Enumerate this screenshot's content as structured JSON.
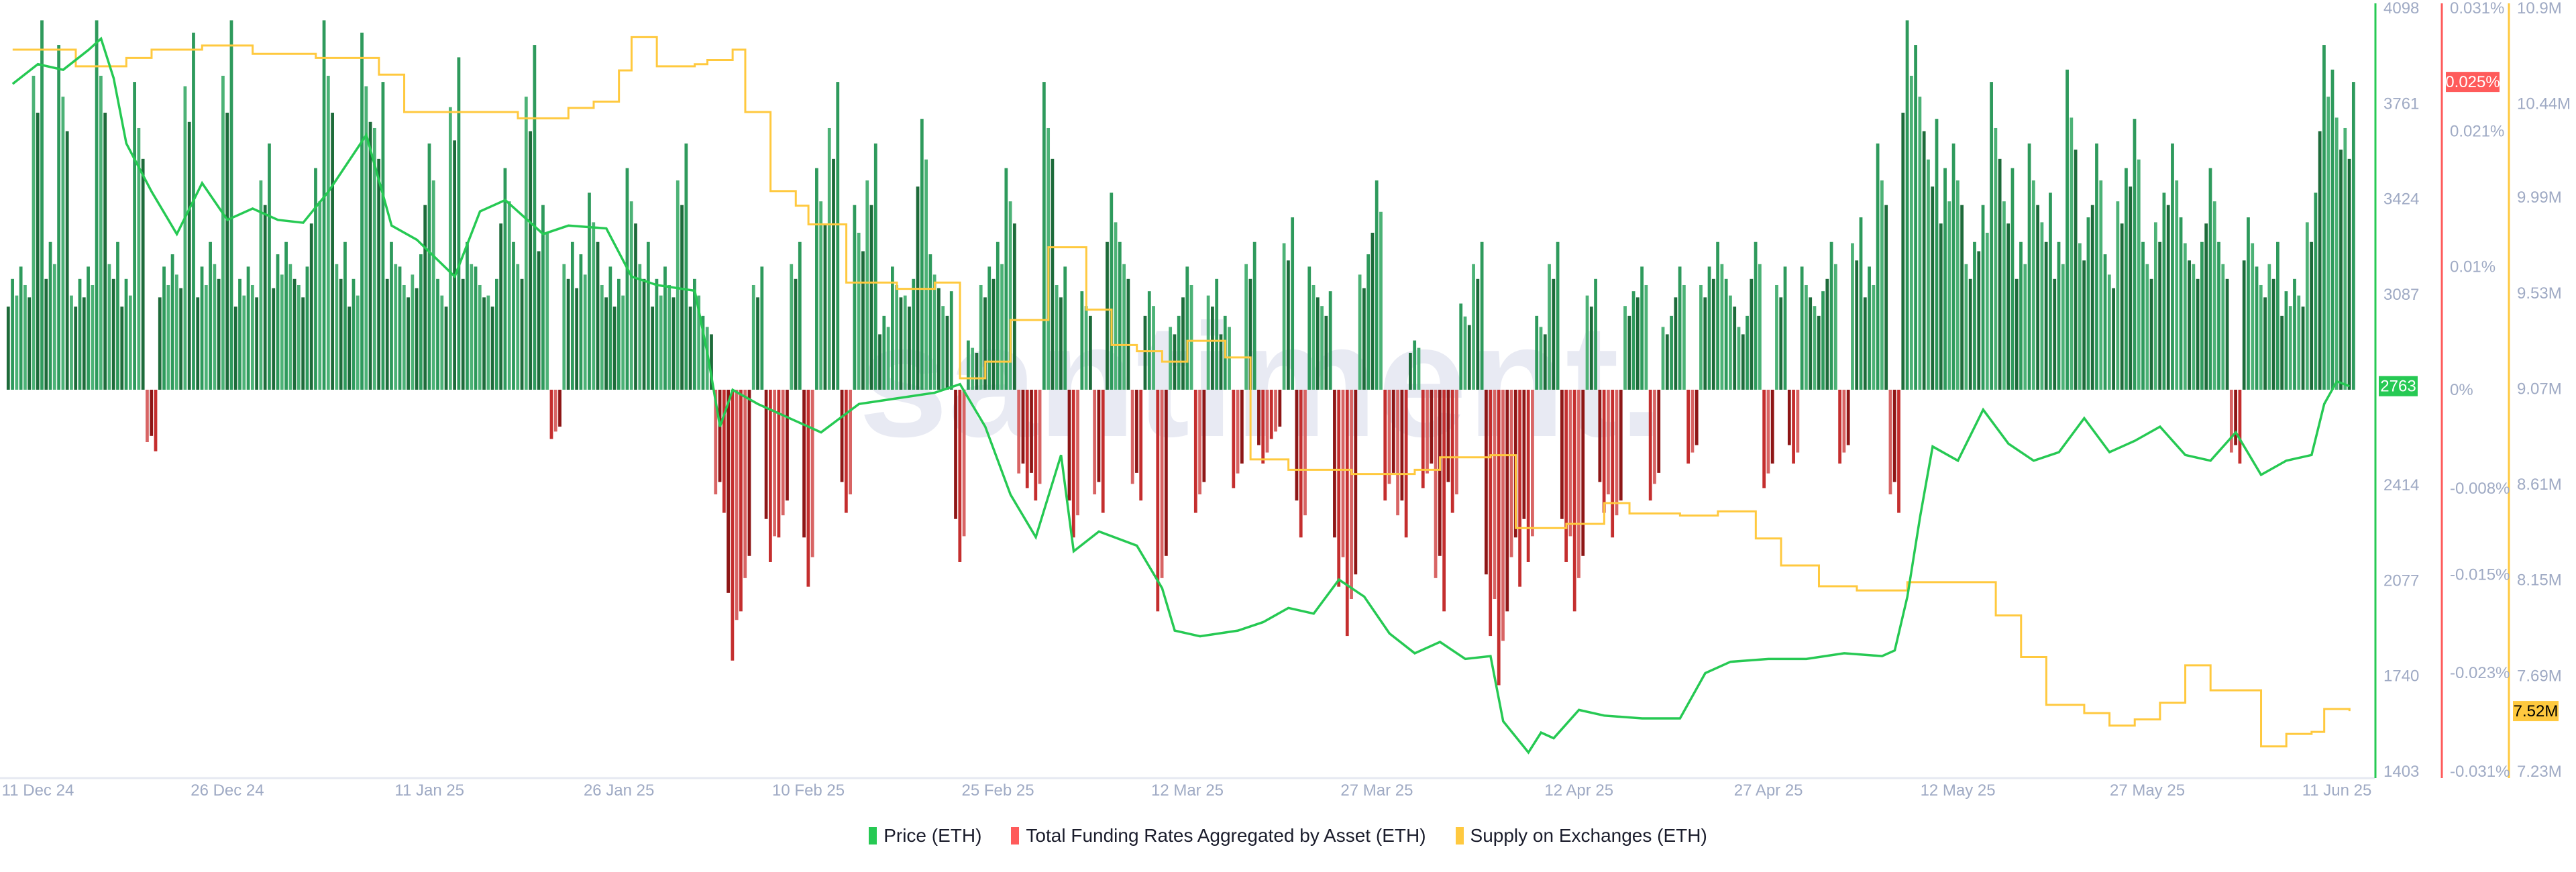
{
  "watermark": "santiment.",
  "colors": {
    "price": "#26c953",
    "funding": "#ff5b5b",
    "supply": "#ffc93f",
    "bar_pos": [
      "#1d6b3a",
      "#2e9a5c",
      "#4cb276"
    ],
    "bar_neg": [
      "#8e1616",
      "#c42e2e",
      "#d86464"
    ]
  },
  "chart_data": {
    "type": "bar+line",
    "x_tick_labels": [
      {
        "date": "2024-12-11",
        "label": "11 Dec 24"
      },
      {
        "date": "2024-12-26",
        "label": "26 Dec 24"
      },
      {
        "date": "2025-01-11",
        "label": "11 Jan 25"
      },
      {
        "date": "2025-01-26",
        "label": "26 Jan 25"
      },
      {
        "date": "2025-02-10",
        "label": "10 Feb 25"
      },
      {
        "date": "2025-02-25",
        "label": "25 Feb 25"
      },
      {
        "date": "2025-03-12",
        "label": "12 Mar 25"
      },
      {
        "date": "2025-03-27",
        "label": "27 Mar 25"
      },
      {
        "date": "2025-04-12",
        "label": "12 Apr 25"
      },
      {
        "date": "2025-04-27",
        "label": "27 Apr 25"
      },
      {
        "date": "2025-05-12",
        "label": "12 May 25"
      },
      {
        "date": "2025-05-27",
        "label": "27 May 25"
      },
      {
        "date": "2025-06-11",
        "label": "11 Jun 25"
      }
    ],
    "x_range": [
      "2024-12-08",
      "2025-06-14"
    ],
    "axes": {
      "price": {
        "range": [
          1403,
          4098
        ],
        "ticks": [
          "4098",
          "3761",
          "3424",
          "3087",
          "2414",
          "2077",
          "1740",
          "1403"
        ],
        "current_label": "2763",
        "current": 2763
      },
      "funding": {
        "range": [
          -0.031,
          0.031
        ],
        "ticks": [
          {
            "v": 0.031,
            "label": "0.031%"
          },
          {
            "v": 0.021,
            "label": "0.021%"
          },
          {
            "v": 0.01,
            "label": "0.01%"
          },
          {
            "v": 0,
            "label": "0%"
          },
          {
            "v": -0.008,
            "label": "-0.008%"
          },
          {
            "v": -0.015,
            "label": "-0.015%"
          },
          {
            "v": -0.023,
            "label": "-0.023%"
          },
          {
            "v": -0.031,
            "label": "-0.031%"
          }
        ],
        "current_label": "0.025%",
        "current": 0.025
      },
      "supply": {
        "range": [
          7.23,
          10.9
        ],
        "ticks": [
          {
            "v": 10.9,
            "label": "10.9M"
          },
          {
            "v": 10.44,
            "label": "10.44M"
          },
          {
            "v": 9.99,
            "label": "9.99M"
          },
          {
            "v": 9.53,
            "label": "9.53M"
          },
          {
            "v": 9.07,
            "label": "9.07M"
          },
          {
            "v": 8.61,
            "label": "8.61M"
          },
          {
            "v": 8.15,
            "label": "8.15M"
          },
          {
            "v": 7.69,
            "label": "7.69M"
          },
          {
            "v": 7.23,
            "label": "7.23M"
          }
        ],
        "current_label": "7.52M",
        "current": 7.52
      }
    },
    "legend": [
      "Price (ETH)",
      "Total Funding Rates Aggregated by Asset (ETH)",
      "Supply on Exchanges (ETH)"
    ],
    "legend_position": "bottom",
    "funding_series": {
      "name": "Total Funding Rates Aggregated by Asset (ETH)",
      "start_date": "2024-12-09",
      "unit": "%",
      "values": [
        0.009,
        0.01,
        0.03,
        0.012,
        0.028,
        0.009,
        0.01,
        0.03,
        0.012,
        0.009,
        0.025,
        -0.005,
        0.01,
        0.011,
        0.029,
        0.01,
        0.012,
        0.03,
        0.009,
        0.01,
        0.02,
        0.011,
        0.012,
        0.01,
        0.018,
        0.03,
        0.012,
        0.009,
        0.029,
        0.025,
        0.012,
        0.01,
        0.011,
        0.02,
        0.009,
        0.027,
        0.012,
        0.01,
        0.009,
        0.018,
        0.012,
        0.028,
        0.015,
        -0.004,
        0.012,
        0.011,
        0.016,
        0.01,
        0.009,
        0.018,
        0.012,
        0.009,
        0.01,
        0.02,
        0.009,
        0.006,
        -0.01,
        -0.022,
        -0.018,
        0.01,
        -0.014,
        -0.012,
        0.012,
        -0.016,
        0.018,
        0.025,
        -0.01,
        0.015,
        0.02,
        0.006,
        0.01,
        0.009,
        0.022,
        0.011,
        0.008,
        -0.014,
        0.004,
        0.01,
        0.012,
        0.018,
        -0.008,
        -0.009,
        0.025,
        0.01,
        -0.012,
        0.008,
        -0.01,
        0.016,
        0.012,
        -0.009,
        0.008,
        -0.018,
        0.006,
        0.01,
        -0.01,
        0.009,
        0.006,
        -0.008,
        0.012,
        -0.006,
        -0.004,
        0.014,
        -0.012,
        0.01,
        0.008,
        -0.016,
        -0.02,
        0.011,
        0.017,
        -0.009,
        -0.012,
        0.004,
        -0.008,
        -0.018,
        -0.01,
        0.007,
        0.012,
        -0.02,
        -0.024,
        -0.016,
        -0.014,
        0.006,
        0.012,
        -0.014,
        -0.018,
        0.009,
        -0.01,
        -0.012,
        0.008,
        0.01,
        -0.009,
        0.006,
        0.01,
        -0.006,
        0.01,
        0.012,
        0.009,
        0.006,
        0.012,
        -0.008,
        0.01,
        -0.006,
        0.01,
        0.008,
        0.012,
        -0.006,
        0.014,
        0.01,
        0.02,
        -0.01,
        0.03,
        0.028,
        0.022,
        0.018,
        0.02,
        0.012,
        0.015,
        0.025,
        0.018,
        0.012,
        0.02,
        0.016,
        0.012,
        0.026,
        0.014,
        0.02,
        0.011,
        0.018,
        0.022,
        0.012,
        0.016,
        0.02,
        0.014,
        0.012,
        0.018,
        0.012,
        -0.006,
        0.014,
        0.01,
        0.012,
        0.008,
        0.009,
        0.016,
        0.028,
        0.026,
        0.025
      ]
    },
    "price_series": {
      "name": "Price (ETH)",
      "points": [
        [
          "2024-12-09",
          3830
        ],
        [
          "2024-12-11",
          3900
        ],
        [
          "2024-12-13",
          3880
        ],
        [
          "2024-12-15",
          3950
        ],
        [
          "2024-12-16",
          3990
        ],
        [
          "2024-12-17",
          3850
        ],
        [
          "2024-12-18",
          3620
        ],
        [
          "2024-12-20",
          3450
        ],
        [
          "2024-12-22",
          3300
        ],
        [
          "2024-12-24",
          3480
        ],
        [
          "2024-12-26",
          3350
        ],
        [
          "2024-12-28",
          3390
        ],
        [
          "2024-12-30",
          3350
        ],
        [
          "2025-01-01",
          3340
        ],
        [
          "2025-01-03",
          3450
        ],
        [
          "2025-01-06",
          3650
        ],
        [
          "2025-01-08",
          3330
        ],
        [
          "2025-01-10",
          3280
        ],
        [
          "2025-01-13",
          3150
        ],
        [
          "2025-01-15",
          3380
        ],
        [
          "2025-01-17",
          3420
        ],
        [
          "2025-01-20",
          3300
        ],
        [
          "2025-01-22",
          3330
        ],
        [
          "2025-01-25",
          3320
        ],
        [
          "2025-01-27",
          3150
        ],
        [
          "2025-01-29",
          3120
        ],
        [
          "2025-02-01",
          3100
        ],
        [
          "2025-02-02",
          2880
        ],
        [
          "2025-02-03",
          2620
        ],
        [
          "2025-02-04",
          2750
        ],
        [
          "2025-02-06",
          2700
        ],
        [
          "2025-02-09",
          2640
        ],
        [
          "2025-02-11",
          2600
        ],
        [
          "2025-02-14",
          2700
        ],
        [
          "2025-02-17",
          2720
        ],
        [
          "2025-02-20",
          2740
        ],
        [
          "2025-02-22",
          2770
        ],
        [
          "2025-02-24",
          2620
        ],
        [
          "2025-02-25",
          2500
        ],
        [
          "2025-02-26",
          2380
        ],
        [
          "2025-02-28",
          2230
        ],
        [
          "2025-03-02",
          2520
        ],
        [
          "2025-03-03",
          2180
        ],
        [
          "2025-03-05",
          2250
        ],
        [
          "2025-03-08",
          2200
        ],
        [
          "2025-03-10",
          2050
        ],
        [
          "2025-03-11",
          1900
        ],
        [
          "2025-03-13",
          1880
        ],
        [
          "2025-03-16",
          1900
        ],
        [
          "2025-03-18",
          1930
        ],
        [
          "2025-03-20",
          1980
        ],
        [
          "2025-03-22",
          1960
        ],
        [
          "2025-03-24",
          2080
        ],
        [
          "2025-03-26",
          2020
        ],
        [
          "2025-03-28",
          1890
        ],
        [
          "2025-03-30",
          1820
        ],
        [
          "2025-04-01",
          1860
        ],
        [
          "2025-04-03",
          1800
        ],
        [
          "2025-04-05",
          1810
        ],
        [
          "2025-04-06",
          1580
        ],
        [
          "2025-04-08",
          1470
        ],
        [
          "2025-04-09",
          1540
        ],
        [
          "2025-04-10",
          1520
        ],
        [
          "2025-04-12",
          1620
        ],
        [
          "2025-04-14",
          1600
        ],
        [
          "2025-04-17",
          1590
        ],
        [
          "2025-04-20",
          1590
        ],
        [
          "2025-04-22",
          1750
        ],
        [
          "2025-04-24",
          1790
        ],
        [
          "2025-04-27",
          1800
        ],
        [
          "2025-04-30",
          1800
        ],
        [
          "2025-05-03",
          1820
        ],
        [
          "2025-05-06",
          1810
        ],
        [
          "2025-05-07",
          1830
        ],
        [
          "2025-05-08",
          2020
        ],
        [
          "2025-05-09",
          2300
        ],
        [
          "2025-05-10",
          2550
        ],
        [
          "2025-05-12",
          2500
        ],
        [
          "2025-05-14",
          2680
        ],
        [
          "2025-05-16",
          2560
        ],
        [
          "2025-05-18",
          2500
        ],
        [
          "2025-05-20",
          2530
        ],
        [
          "2025-05-22",
          2650
        ],
        [
          "2025-05-24",
          2530
        ],
        [
          "2025-05-26",
          2570
        ],
        [
          "2025-05-28",
          2620
        ],
        [
          "2025-05-30",
          2520
        ],
        [
          "2025-06-01",
          2500
        ],
        [
          "2025-06-03",
          2600
        ],
        [
          "2025-06-05",
          2450
        ],
        [
          "2025-06-07",
          2500
        ],
        [
          "2025-06-09",
          2520
        ],
        [
          "2025-06-10",
          2700
        ],
        [
          "2025-06-11",
          2780
        ],
        [
          "2025-06-12",
          2763
        ]
      ]
    },
    "supply_series": {
      "name": "Supply on Exchanges (ETH)",
      "unit": "M",
      "step": true,
      "points": [
        [
          "2024-12-09",
          10.7
        ],
        [
          "2024-12-14",
          10.62
        ],
        [
          "2024-12-18",
          10.66
        ],
        [
          "2024-12-20",
          10.7
        ],
        [
          "2024-12-24",
          10.72
        ],
        [
          "2024-12-28",
          10.68
        ],
        [
          "2025-01-02",
          10.66
        ],
        [
          "2025-01-07",
          10.58
        ],
        [
          "2025-01-09",
          10.4
        ],
        [
          "2025-01-18",
          10.37
        ],
        [
          "2025-01-22",
          10.42
        ],
        [
          "2025-01-24",
          10.45
        ],
        [
          "2025-01-26",
          10.6
        ],
        [
          "2025-01-27",
          10.76
        ],
        [
          "2025-01-29",
          10.62
        ],
        [
          "2025-02-01",
          10.63
        ],
        [
          "2025-02-02",
          10.65
        ],
        [
          "2025-02-04",
          10.7
        ],
        [
          "2025-02-05",
          10.4
        ],
        [
          "2025-02-07",
          10.02
        ],
        [
          "2025-02-09",
          9.95
        ],
        [
          "2025-02-10",
          9.86
        ],
        [
          "2025-02-13",
          9.58
        ],
        [
          "2025-02-17",
          9.55
        ],
        [
          "2025-02-20",
          9.58
        ],
        [
          "2025-02-22",
          9.12
        ],
        [
          "2025-02-24",
          9.2
        ],
        [
          "2025-02-26",
          9.4
        ],
        [
          "2025-03-01",
          9.75
        ],
        [
          "2025-03-04",
          9.45
        ],
        [
          "2025-03-06",
          9.28
        ],
        [
          "2025-03-08",
          9.25
        ],
        [
          "2025-03-10",
          9.2
        ],
        [
          "2025-03-12",
          9.3
        ],
        [
          "2025-03-15",
          9.22
        ],
        [
          "2025-03-17",
          8.73
        ],
        [
          "2025-03-20",
          8.68
        ],
        [
          "2025-03-25",
          8.66
        ],
        [
          "2025-03-30",
          8.68
        ],
        [
          "2025-04-01",
          8.74
        ],
        [
          "2025-04-05",
          8.75
        ],
        [
          "2025-04-07",
          8.4
        ],
        [
          "2025-04-11",
          8.42
        ],
        [
          "2025-04-14",
          8.52
        ],
        [
          "2025-04-16",
          8.47
        ],
        [
          "2025-04-20",
          8.46
        ],
        [
          "2025-04-23",
          8.48
        ],
        [
          "2025-04-26",
          8.35
        ],
        [
          "2025-04-28",
          8.22
        ],
        [
          "2025-05-01",
          8.12
        ],
        [
          "2025-05-04",
          8.1
        ],
        [
          "2025-05-08",
          8.14
        ],
        [
          "2025-05-12",
          8.14
        ],
        [
          "2025-05-15",
          7.98
        ],
        [
          "2025-05-17",
          7.78
        ],
        [
          "2025-05-19",
          7.55
        ],
        [
          "2025-05-22",
          7.51
        ],
        [
          "2025-05-24",
          7.45
        ],
        [
          "2025-05-26",
          7.48
        ],
        [
          "2025-05-28",
          7.56
        ],
        [
          "2025-05-30",
          7.74
        ],
        [
          "2025-06-01",
          7.62
        ],
        [
          "2025-06-03",
          7.62
        ],
        [
          "2025-06-05",
          7.35
        ],
        [
          "2025-06-07",
          7.41
        ],
        [
          "2025-06-09",
          7.42
        ],
        [
          "2025-06-10",
          7.53
        ],
        [
          "2025-06-12",
          7.52
        ]
      ]
    }
  }
}
